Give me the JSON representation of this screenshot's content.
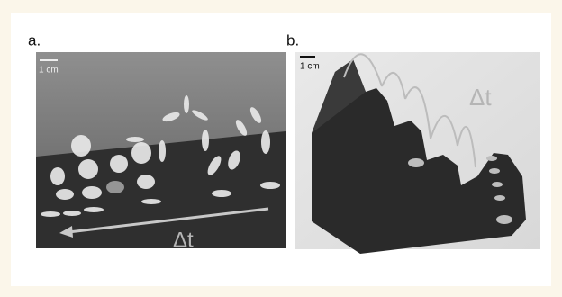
{
  "panels": [
    {
      "label": "a.",
      "scale_bar": "1 cm",
      "annotation": "Δt"
    },
    {
      "label": "b.",
      "scale_bar": "1 cm",
      "annotation": "Δt"
    }
  ]
}
